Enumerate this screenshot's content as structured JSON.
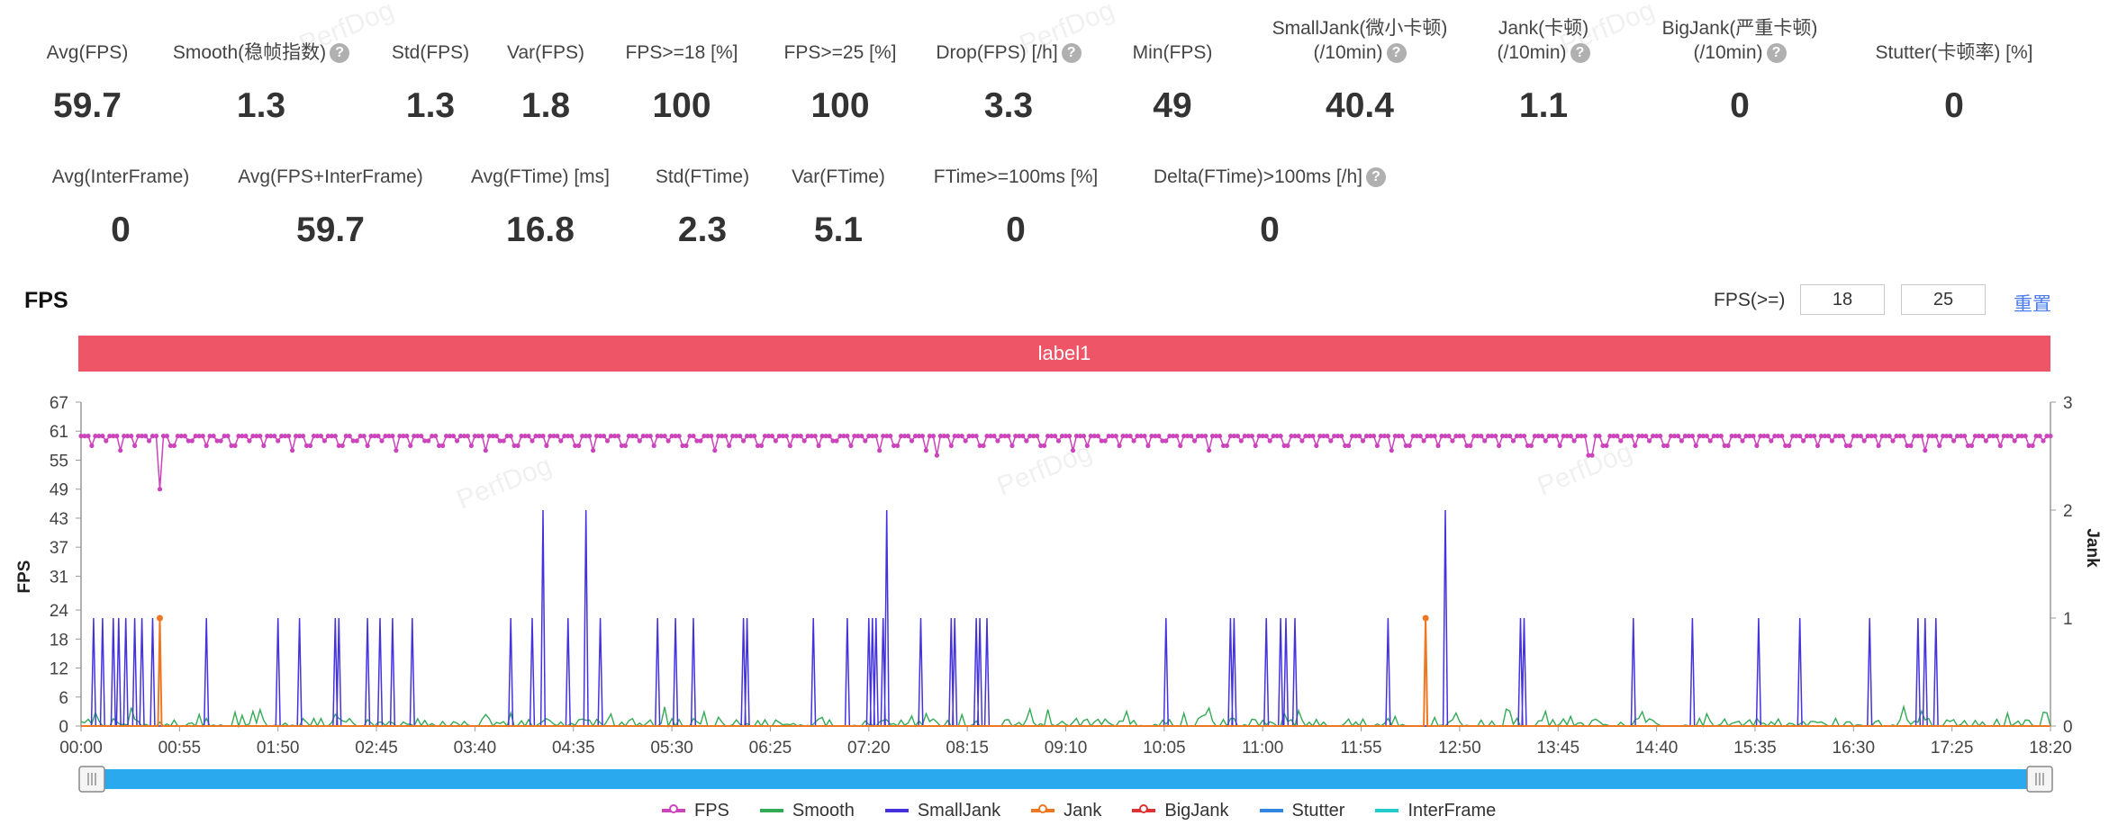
{
  "stats_row1": [
    {
      "label": "Avg(FPS)",
      "value": "59.7",
      "help": false
    },
    {
      "label": "Smooth(稳帧指数)",
      "value": "1.3",
      "help": true
    },
    {
      "label": "Std(FPS)",
      "value": "1.3",
      "help": false
    },
    {
      "label": "Var(FPS)",
      "value": "1.8",
      "help": false
    },
    {
      "label": "FPS>=18 [%]",
      "value": "100",
      "help": false
    },
    {
      "label": "FPS>=25 [%]",
      "value": "100",
      "help": false
    },
    {
      "label": "Drop(FPS) [/h]",
      "value": "3.3",
      "help": true
    },
    {
      "label": "Min(FPS)",
      "value": "49",
      "help": false
    },
    {
      "label": "SmallJank(微小卡顿)",
      "label2": "(/10min)",
      "value": "40.4",
      "help": true
    },
    {
      "label": "Jank(卡顿)",
      "label2": "(/10min)",
      "value": "1.1",
      "help": true
    },
    {
      "label": "BigJank(严重卡顿)",
      "label2": "(/10min)",
      "value": "0",
      "help": true
    },
    {
      "label": "Stutter(卡顿率) [%]",
      "value": "0",
      "help": false
    }
  ],
  "stats_row2": [
    {
      "label": "Avg(InterFrame)",
      "value": "0",
      "help": false
    },
    {
      "label": "Avg(FPS+InterFrame)",
      "value": "59.7",
      "help": false
    },
    {
      "label": "Avg(FTime) [ms]",
      "value": "16.8",
      "help": false
    },
    {
      "label": "Std(FTime)",
      "value": "2.3",
      "help": false
    },
    {
      "label": "Var(FTime)",
      "value": "5.1",
      "help": false
    },
    {
      "label": "FTime>=100ms [%]",
      "value": "0",
      "help": false
    },
    {
      "label": "Delta(FTime)>100ms [/h]",
      "value": "0",
      "help": true
    }
  ],
  "help_glyph": "?",
  "fps_section": {
    "title": "FPS",
    "threshold_label": "FPS(>=)",
    "threshold_low": "18",
    "threshold_high": "25",
    "reset_label": "重置"
  },
  "label_bar": {
    "text": "label1",
    "color": "#ee5566"
  },
  "watermark": "PerfDog",
  "legend_items": [
    {
      "name": "FPS",
      "color": "#cc44bb"
    },
    {
      "name": "Smooth",
      "color": "#33aa55"
    },
    {
      "name": "SmallJank",
      "color": "#4433dd"
    },
    {
      "name": "Jank",
      "color": "#ee7722"
    },
    {
      "name": "BigJank",
      "color": "#dd3333"
    },
    {
      "name": "Stutter",
      "color": "#3388dd"
    },
    {
      "name": "InterFrame",
      "color": "#22cccc"
    }
  ],
  "chart_data": {
    "type": "line",
    "xlabel": "",
    "ylabel": "FPS",
    "y2label": "Jank",
    "x_ticks": [
      "00:00",
      "00:55",
      "01:50",
      "02:45",
      "03:40",
      "04:35",
      "05:30",
      "06:25",
      "07:20",
      "08:15",
      "09:10",
      "10:05",
      "11:00",
      "11:55",
      "12:50",
      "13:45",
      "14:40",
      "15:35",
      "16:30",
      "17:25",
      "18:20"
    ],
    "x_range_seconds": [
      0,
      1100
    ],
    "y_ticks": [
      0,
      6,
      12,
      18,
      24,
      31,
      37,
      43,
      49,
      55,
      61,
      67
    ],
    "ylim": [
      0,
      67
    ],
    "y2_ticks": [
      0,
      1,
      2,
      3
    ],
    "y2lim": [
      0,
      3
    ],
    "fps_level": 60,
    "fps_dips": [
      [
        6,
        58
      ],
      [
        14,
        59
      ],
      [
        22,
        57
      ],
      [
        30,
        58
      ],
      [
        38,
        59
      ],
      [
        44,
        49
      ],
      [
        51,
        58
      ],
      [
        61,
        59
      ],
      [
        70,
        58
      ],
      [
        77,
        59
      ],
      [
        85,
        58
      ],
      [
        94,
        59
      ],
      [
        102,
        58
      ],
      [
        110,
        59
      ],
      [
        118,
        57
      ],
      [
        127,
        58
      ],
      [
        136,
        59
      ],
      [
        145,
        58
      ],
      [
        153,
        59
      ],
      [
        160,
        58
      ],
      [
        168,
        59
      ],
      [
        176,
        57
      ],
      [
        184,
        58
      ],
      [
        193,
        59
      ],
      [
        201,
        58
      ],
      [
        210,
        59
      ],
      [
        218,
        58
      ],
      [
        226,
        57
      ],
      [
        235,
        59
      ],
      [
        243,
        58
      ],
      [
        252,
        59
      ],
      [
        260,
        58
      ],
      [
        268,
        59
      ],
      [
        277,
        58
      ],
      [
        286,
        57
      ],
      [
        294,
        59
      ],
      [
        303,
        58
      ],
      [
        312,
        59
      ],
      [
        320,
        58
      ],
      [
        328,
        59
      ],
      [
        337,
        58
      ],
      [
        345,
        59
      ],
      [
        354,
        57
      ],
      [
        362,
        58
      ],
      [
        370,
        59
      ],
      [
        379,
        58
      ],
      [
        388,
        59
      ],
      [
        396,
        58
      ],
      [
        404,
        59
      ],
      [
        412,
        58
      ],
      [
        421,
        59
      ],
      [
        430,
        58
      ],
      [
        438,
        59
      ],
      [
        446,
        57
      ],
      [
        455,
        58
      ],
      [
        464,
        59
      ],
      [
        472,
        57
      ],
      [
        478,
        56
      ],
      [
        486,
        58
      ],
      [
        494,
        59
      ],
      [
        503,
        58
      ],
      [
        512,
        59
      ],
      [
        520,
        58
      ],
      [
        528,
        59
      ],
      [
        537,
        58
      ],
      [
        546,
        59
      ],
      [
        554,
        57
      ],
      [
        562,
        58
      ],
      [
        571,
        59
      ],
      [
        580,
        58
      ],
      [
        588,
        59
      ],
      [
        596,
        58
      ],
      [
        605,
        59
      ],
      [
        614,
        58
      ],
      [
        622,
        59
      ],
      [
        630,
        57
      ],
      [
        639,
        58
      ],
      [
        648,
        59
      ],
      [
        656,
        58
      ],
      [
        664,
        59
      ],
      [
        673,
        58
      ],
      [
        682,
        59
      ],
      [
        690,
        58
      ],
      [
        698,
        59
      ],
      [
        707,
        58
      ],
      [
        716,
        59
      ],
      [
        724,
        58
      ],
      [
        732,
        57
      ],
      [
        741,
        58
      ],
      [
        750,
        59
      ],
      [
        758,
        58
      ],
      [
        766,
        59
      ],
      [
        775,
        58
      ],
      [
        784,
        59
      ],
      [
        792,
        58
      ],
      [
        800,
        59
      ],
      [
        809,
        58
      ],
      [
        818,
        59
      ],
      [
        826,
        58
      ],
      [
        834,
        59
      ],
      [
        843,
        56
      ],
      [
        851,
        58
      ],
      [
        860,
        59
      ],
      [
        868,
        58
      ],
      [
        876,
        59
      ],
      [
        885,
        58
      ],
      [
        894,
        59
      ],
      [
        902,
        58
      ],
      [
        910,
        59
      ],
      [
        919,
        58
      ],
      [
        928,
        59
      ],
      [
        936,
        58
      ],
      [
        944,
        59
      ],
      [
        953,
        58
      ],
      [
        962,
        59
      ],
      [
        970,
        58
      ],
      [
        978,
        59
      ],
      [
        987,
        58
      ],
      [
        996,
        59
      ],
      [
        1004,
        58
      ],
      [
        1012,
        59
      ],
      [
        1021,
        58
      ],
      [
        1030,
        57
      ],
      [
        1038,
        58
      ],
      [
        1046,
        59
      ],
      [
        1055,
        58
      ],
      [
        1064,
        59
      ],
      [
        1072,
        58
      ],
      [
        1080,
        59
      ],
      [
        1089,
        58
      ],
      [
        1096,
        59
      ]
    ],
    "small_jank_spikes": [
      [
        7,
        1
      ],
      [
        12,
        1
      ],
      [
        18,
        1
      ],
      [
        21,
        1
      ],
      [
        25,
        1
      ],
      [
        30,
        1
      ],
      [
        34,
        1
      ],
      [
        40,
        1
      ],
      [
        70,
        1
      ],
      [
        110,
        1
      ],
      [
        122,
        1
      ],
      [
        142,
        1
      ],
      [
        144,
        1
      ],
      [
        160,
        1
      ],
      [
        167,
        1
      ],
      [
        174,
        1
      ],
      [
        185,
        1
      ],
      [
        240,
        1
      ],
      [
        252,
        1
      ],
      [
        258,
        2
      ],
      [
        272,
        1
      ],
      [
        282,
        2
      ],
      [
        290,
        1
      ],
      [
        322,
        1
      ],
      [
        332,
        1
      ],
      [
        342,
        1
      ],
      [
        370,
        1
      ],
      [
        372,
        1
      ],
      [
        409,
        1
      ],
      [
        428,
        1
      ],
      [
        440,
        1
      ],
      [
        442,
        1
      ],
      [
        444,
        1
      ],
      [
        448,
        1
      ],
      [
        450,
        2
      ],
      [
        469,
        1
      ],
      [
        486,
        1
      ],
      [
        488,
        1
      ],
      [
        500,
        1
      ],
      [
        502,
        1
      ],
      [
        506,
        1
      ],
      [
        606,
        1
      ],
      [
        642,
        1
      ],
      [
        644,
        1
      ],
      [
        662,
        1
      ],
      [
        670,
        1
      ],
      [
        673,
        1
      ],
      [
        678,
        1
      ],
      [
        730,
        1
      ],
      [
        762,
        2
      ],
      [
        804,
        1
      ],
      [
        806,
        1
      ],
      [
        867,
        1
      ],
      [
        900,
        1
      ],
      [
        937,
        1
      ],
      [
        960,
        1
      ],
      [
        999,
        1
      ],
      [
        1026,
        1
      ],
      [
        1030,
        1
      ],
      [
        1036,
        1
      ]
    ],
    "jank_spikes": [
      [
        44,
        1
      ],
      [
        751,
        1
      ]
    ],
    "big_jank_count": 0,
    "stutter_percent": 0,
    "interframe_avg": 0
  }
}
